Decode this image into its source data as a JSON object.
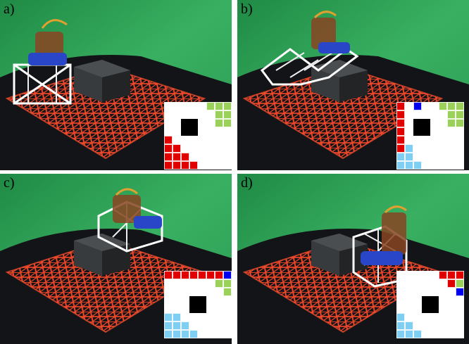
{
  "panels": [
    {
      "label": "a)",
      "map": [
        "wwwwwggg",
        "wwwwwwgg",
        "wwkkwwgg",
        "wwkkwwww",
        "rwwwwwww",
        "rrwwwwww",
        "rrrwwwww",
        "rrrrwwww"
      ]
    },
    {
      "label": "b)",
      "map": [
        "rwbwwggg",
        "rwwwwwgg",
        "rwkkwwgg",
        "rwkkwwww",
        "rwwwwwww",
        "rcwwwwww",
        "ccwwwwww",
        "cccwwwww"
      ]
    },
    {
      "label": "c)",
      "map": [
        "rrrrrrrb",
        "wwwwwwgg",
        "wwwwwwwg",
        "wwwkkwww",
        "wwwkkwww",
        "ccwwwwww",
        "cccwwwww",
        "ccccwwww"
      ]
    },
    {
      "label": "d)",
      "map": [
        "wwwwwrrr",
        "wwwwwwrg",
        "wwwwwwwb",
        "wwwkkwww",
        "wwwkkwww",
        "cwwwwwww",
        "ccwwwwww",
        "cccwwwww"
      ]
    }
  ],
  "colors": {
    "r": "#e00000",
    "b": "#0000ee",
    "g": "#9bd05a",
    "c": "#7ecff2",
    "k": "#000000",
    "w": "#ffffff"
  }
}
